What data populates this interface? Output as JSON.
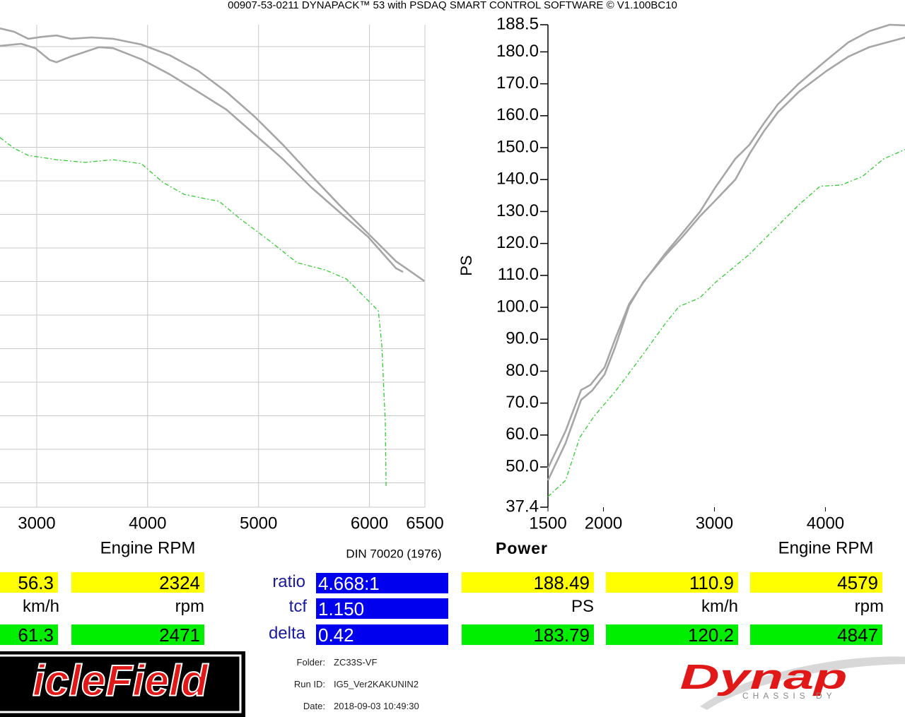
{
  "header": "00907-53-0211 DYNAPACK™ 53 with PSDAQ SMART CONTROL SOFTWARE © V1.100BC10",
  "chart_data": [
    {
      "type": "line",
      "x_label": "Engine RPM",
      "xlim": [
        2669,
        6500
      ],
      "xticks": [
        3000,
        4000,
        5000,
        6000,
        6500
      ],
      "ylim": [
        0,
        14.4
      ],
      "grid": true,
      "series": [
        {
          "color": "#a6a6a6",
          "dashed": false,
          "x": [
            2669,
            2797,
            2924,
            3052,
            3179,
            3307,
            3498,
            3689,
            3944,
            4199,
            4454,
            4709,
            4964,
            5219,
            5474,
            5729,
            5984,
            6239,
            6494
          ],
          "values": [
            14.29,
            14.19,
            13.98,
            14.04,
            14.08,
            13.98,
            14.02,
            13.98,
            13.81,
            13.49,
            13.03,
            12.4,
            11.66,
            10.82,
            9.91,
            9.02,
            8.18,
            7.34,
            6.75
          ]
        },
        {
          "color": "#a6a6a6",
          "dashed": false,
          "x": [
            2669,
            2860,
            2988,
            3115,
            3179,
            3307,
            3562,
            3689,
            3944,
            4199,
            4454,
            4709,
            4964,
            5219,
            5474,
            5729,
            5984,
            6239,
            6303
          ],
          "values": [
            13.77,
            13.83,
            13.7,
            13.35,
            13.28,
            13.45,
            13.73,
            13.7,
            13.37,
            12.92,
            12.4,
            11.87,
            11.13,
            10.39,
            9.55,
            8.81,
            8.08,
            7.13,
            7.02
          ]
        },
        {
          "color": "#33cc33",
          "dashed": true,
          "x": [
            2669,
            2797,
            2924,
            3179,
            3434,
            3689,
            3944,
            4135,
            4327,
            4518,
            4645,
            4837,
            5092,
            5347,
            5602,
            5793,
            5984,
            6080,
            6112,
            6143,
            6150
          ],
          "values": [
            11.03,
            10.71,
            10.5,
            10.37,
            10.29,
            10.37,
            10.25,
            9.7,
            9.34,
            9.21,
            9.13,
            8.6,
            7.97,
            7.3,
            7.08,
            6.81,
            6.18,
            5.86,
            4.81,
            2.49,
            0.59
          ]
        }
      ]
    },
    {
      "type": "line",
      "title": "Power",
      "x_label": "Engine RPM",
      "y_label": "PS",
      "xlim": [
        1500,
        4717
      ],
      "xticks": [
        1500,
        2000,
        3000,
        4000
      ],
      "ylim": [
        37.4,
        188.5
      ],
      "yticks": [
        188.5,
        {
          "value": 180,
          "label": "180.0"
        },
        {
          "value": 170,
          "label": "170.0"
        },
        {
          "value": 160,
          "label": "160.0"
        },
        {
          "value": 150,
          "label": "150.0"
        },
        {
          "value": 140,
          "label": "140.0"
        },
        {
          "value": 130,
          "label": "130.0"
        },
        {
          "value": 120,
          "label": "120.0"
        },
        {
          "value": 110,
          "label": "110.0"
        },
        {
          "value": 100,
          "label": "100.0"
        },
        {
          "value": 90,
          "label": "90.0"
        },
        {
          "value": 80,
          "label": "80.0"
        },
        {
          "value": 70,
          "label": "70.0"
        },
        {
          "value": 60,
          "label": "60.0"
        },
        {
          "value": 50,
          "label": "50.0"
        },
        37.4
      ],
      "grid": false,
      "series": [
        {
          "color": "#a6a6a6",
          "dashed": false,
          "x": [
            1500,
            1659,
            1799,
            1882,
            2010,
            2105,
            2232,
            2360,
            2551,
            2710,
            2869,
            3009,
            3188,
            3315,
            3443,
            3570,
            3761,
            4009,
            4207,
            4398,
            4579,
            4717
          ],
          "values": [
            49.6,
            61.3,
            74.1,
            75.7,
            81.2,
            90.0,
            101.1,
            107.8,
            116.6,
            123.2,
            129.9,
            137.6,
            146.5,
            150.9,
            157.5,
            163.5,
            170.1,
            177.4,
            183.0,
            186.5,
            188.5,
            188.3
          ]
        },
        {
          "color": "#a6a6a6",
          "dashed": false,
          "x": [
            1500,
            1659,
            1799,
            1900,
            2010,
            2105,
            2232,
            2360,
            2551,
            2710,
            2869,
            3009,
            3188,
            3315,
            3443,
            3570,
            3761,
            4009,
            4207,
            4398,
            4557,
            4717
          ],
          "values": [
            45.8,
            57.5,
            71.0,
            74.0,
            79.0,
            87.5,
            100.5,
            108.0,
            116.0,
            122.0,
            128.5,
            133.5,
            140.0,
            148.0,
            155.0,
            161.0,
            167.5,
            174.0,
            178.5,
            181.5,
            183.0,
            184.5
          ]
        },
        {
          "color": "#33cc33",
          "dashed": true,
          "x": [
            1500,
            1659,
            1786,
            1914,
            2105,
            2296,
            2551,
            2679,
            2869,
            3009,
            3315,
            3570,
            3761,
            3952,
            4143,
            4334,
            4525,
            4717
          ],
          "values": [
            40.7,
            45.8,
            59.2,
            65.8,
            73.6,
            82.4,
            94.6,
            100.2,
            103.0,
            107.8,
            116.6,
            125.5,
            132.1,
            137.9,
            138.3,
            141.0,
            146.5,
            149.4
          ]
        }
      ]
    }
  ],
  "standard": "DIN 70020 (1976)",
  "readouts": {
    "left": {
      "top": [
        "56.3",
        "2324"
      ],
      "units": [
        "km/h",
        "rpm"
      ],
      "bottom": [
        "61.3",
        "2471"
      ]
    },
    "center": {
      "labels": [
        "ratio",
        "tcf",
        "delta"
      ],
      "values": [
        "4.668:1",
        "1.150",
        "0.42"
      ]
    },
    "right": {
      "top": [
        "188.49",
        "110.9",
        "4579"
      ],
      "units": [
        "PS",
        "km/h",
        "rpm"
      ],
      "bottom": [
        "183.79",
        "120.2",
        "4847"
      ]
    }
  },
  "run_info": {
    "labels": [
      "Folder:",
      "Run ID:",
      "Date:"
    ],
    "values": [
      "ZC33S-VF",
      "IG5_Ver2KAKUNIN2",
      "2018-09-03 10:49:30"
    ]
  },
  "logos": {
    "left": "icleField",
    "right": "Dynap",
    "right_sub": "CHASSIS DY"
  }
}
